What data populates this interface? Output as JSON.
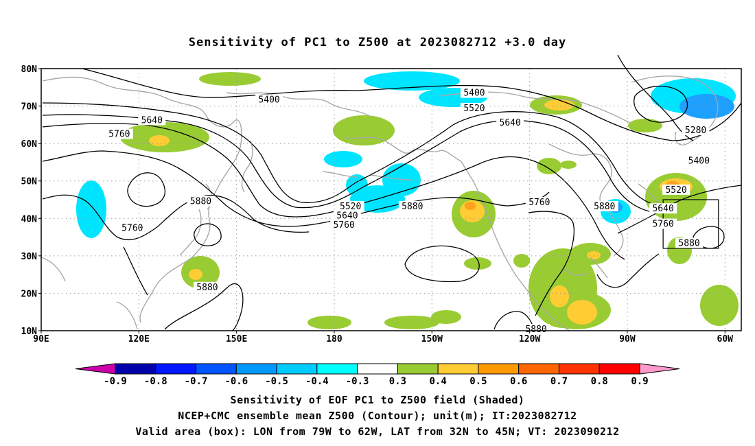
{
  "title": "Sensitivity of PC1 to Z500 at 2023082712 +3.0 day",
  "map": {
    "lon_range": [
      90,
      305
    ],
    "lat_range": [
      10,
      80
    ],
    "lat_ticks": [
      {
        "lat": 80,
        "label": "80N"
      },
      {
        "lat": 70,
        "label": "70N"
      },
      {
        "lat": 60,
        "label": "60N"
      },
      {
        "lat": 50,
        "label": "50N"
      },
      {
        "lat": 40,
        "label": "40N"
      },
      {
        "lat": 30,
        "label": "30N"
      },
      {
        "lat": 20,
        "label": "20N"
      },
      {
        "lat": 10,
        "label": "10N"
      }
    ],
    "lon_ticks": [
      {
        "lon": 90,
        "label": "90E"
      },
      {
        "lon": 120,
        "label": "120E"
      },
      {
        "lon": 150,
        "label": "150E"
      },
      {
        "lon": 180,
        "label": "180"
      },
      {
        "lon": 210,
        "label": "150W"
      },
      {
        "lon": 240,
        "label": "120W"
      },
      {
        "lon": 270,
        "label": "90W"
      },
      {
        "lon": 300,
        "label": "60W"
      }
    ],
    "grid": true,
    "valid_box": {
      "lon_min": 281,
      "lon_max": 298,
      "lat_min": 32,
      "lat_max": 45
    },
    "contour_labels": [
      {
        "text": "5400",
        "lon": 160,
        "lat": 71.5
      },
      {
        "text": "5400",
        "lon": 223,
        "lat": 73.3
      },
      {
        "text": "5520",
        "lon": 223,
        "lat": 69.2
      },
      {
        "text": "5640",
        "lon": 124,
        "lat": 66.0
      },
      {
        "text": "5760",
        "lon": 114,
        "lat": 62.3
      },
      {
        "text": "5640",
        "lon": 234,
        "lat": 65.3
      },
      {
        "text": "5280",
        "lon": 291,
        "lat": 63.3
      },
      {
        "text": "5400",
        "lon": 292,
        "lat": 55.2
      },
      {
        "text": "5520",
        "lon": 285,
        "lat": 47.4
      },
      {
        "text": "5640",
        "lon": 281,
        "lat": 42.4
      },
      {
        "text": "5760",
        "lon": 281,
        "lat": 38.3
      },
      {
        "text": "5880",
        "lon": 289,
        "lat": 33.2
      },
      {
        "text": "5880",
        "lon": 139,
        "lat": 44.4
      },
      {
        "text": "5760",
        "lon": 118,
        "lat": 37.2
      },
      {
        "text": "5520",
        "lon": 185,
        "lat": 43.0
      },
      {
        "text": "5640",
        "lon": 184,
        "lat": 40.5
      },
      {
        "text": "5760",
        "lon": 183,
        "lat": 38.0
      },
      {
        "text": "5880",
        "lon": 204,
        "lat": 43.0
      },
      {
        "text": "5760",
        "lon": 243,
        "lat": 44.1
      },
      {
        "text": "5880",
        "lon": 263,
        "lat": 43.0
      },
      {
        "text": "5880",
        "lon": 141,
        "lat": 21.4
      },
      {
        "text": "5880",
        "lon": 242,
        "lat": 10.2
      }
    ]
  },
  "colorbar": {
    "colors": [
      "#0000aa",
      "#0018ff",
      "#0055ff",
      "#0099ff",
      "#00ccff",
      "#00ffff",
      "#ffffff",
      "#99cc33",
      "#ffcc33",
      "#ff9900",
      "#ff6600",
      "#ff3300",
      "#ff0000"
    ],
    "low_triangle_color": "#cc00aa",
    "high_triangle_color": "#ff99cc",
    "labels": [
      "-0.9",
      "-0.8",
      "-0.7",
      "-0.6",
      "-0.5",
      "-0.4",
      "-0.3",
      "0.3",
      "0.4",
      "0.5",
      "0.6",
      "0.7",
      "0.8",
      "0.9"
    ]
  },
  "shading_colors": {
    "light_blue": "#00e5ff",
    "mid_blue": "#1ea0ff",
    "green": "#99cc33",
    "yellow": "#ffcc33",
    "orange": "#ffa01e"
  },
  "footer": {
    "line1": "Sensitivity of EOF PC1 to Z500 field (Shaded)",
    "line2": "NCEP+CMC ensemble mean Z500 (Contour); unit(m); IT:2023082712",
    "line3": "Valid area (box): LON from 79W to 62W, LAT from 32N to 45N; VT: 2023090212"
  }
}
